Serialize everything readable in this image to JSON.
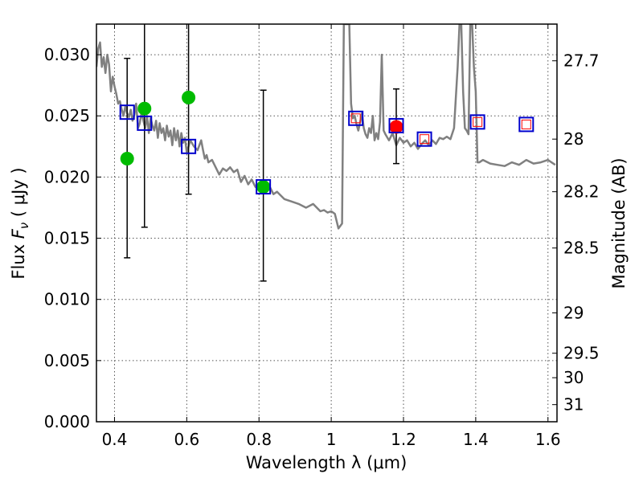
{
  "chart_data": {
    "type": "scatter",
    "xlabel": "Wavelength  λ (μm)",
    "ylabel": "Flux  F_ν  ( μJy )",
    "ylabel_parts": {
      "prefix": "Flux  ",
      "var": "F",
      "sub": "ν",
      "suffix": "  ( μJy )"
    },
    "y2label": "Magnitude (AB)",
    "xlim": [
      0.35,
      1.625
    ],
    "ylim": [
      0.0,
      0.0325
    ],
    "grid": true,
    "x_ticks": [
      0.4,
      0.6,
      0.8,
      1.0,
      1.2,
      1.4,
      1.6
    ],
    "x_tick_labels": [
      "0.4",
      "0.6",
      "0.8",
      "1",
      "1.2",
      "1.4",
      "1.6"
    ],
    "y_ticks": [
      0.0,
      0.005,
      0.01,
      0.015,
      0.02,
      0.025,
      0.03
    ],
    "y_tick_labels": [
      "0.000",
      "0.005",
      "0.010",
      "0.015",
      "0.020",
      "0.025",
      "0.030"
    ],
    "right_axis_ticks": [
      {
        "flux": 0.0295,
        "label": "27.7"
      },
      {
        "flux": 0.0231,
        "label": "28"
      },
      {
        "flux": 0.0188,
        "label": "28.2"
      },
      {
        "flux": 0.0142,
        "label": "28.5"
      },
      {
        "flux": 0.0089,
        "label": "29"
      },
      {
        "flux": 0.0056,
        "label": "29.5"
      },
      {
        "flux": 0.0036,
        "label": "30"
      },
      {
        "flux": 0.0014,
        "label": "31"
      }
    ],
    "colors": {
      "spectrum": "#808080",
      "green": "#00bb00",
      "red": "#ff0000",
      "blue_box": "#0000cc",
      "error_bar": "#000000"
    },
    "series": [
      {
        "name": "model spectrum",
        "type": "line",
        "x": [
          0.35,
          0.355,
          0.36,
          0.365,
          0.37,
          0.375,
          0.38,
          0.385,
          0.39,
          0.395,
          0.4,
          0.405,
          0.41,
          0.415,
          0.42,
          0.425,
          0.43,
          0.435,
          0.44,
          0.445,
          0.45,
          0.455,
          0.46,
          0.465,
          0.47,
          0.475,
          0.48,
          0.485,
          0.49,
          0.495,
          0.5,
          0.505,
          0.51,
          0.515,
          0.52,
          0.525,
          0.53,
          0.535,
          0.54,
          0.545,
          0.55,
          0.555,
          0.56,
          0.565,
          0.57,
          0.575,
          0.58,
          0.585,
          0.59,
          0.595,
          0.6,
          0.61,
          0.62,
          0.63,
          0.64,
          0.645,
          0.65,
          0.655,
          0.66,
          0.67,
          0.68,
          0.69,
          0.7,
          0.71,
          0.72,
          0.73,
          0.74,
          0.75,
          0.76,
          0.77,
          0.78,
          0.79,
          0.8,
          0.81,
          0.82,
          0.83,
          0.84,
          0.85,
          0.87,
          0.89,
          0.91,
          0.93,
          0.95,
          0.97,
          0.98,
          0.99,
          1.0,
          1.01,
          1.02,
          1.03,
          1.035,
          1.04,
          1.045,
          1.05,
          1.055,
          1.06,
          1.065,
          1.07,
          1.075,
          1.08,
          1.085,
          1.09,
          1.095,
          1.1,
          1.105,
          1.11,
          1.115,
          1.12,
          1.125,
          1.13,
          1.135,
          1.14,
          1.145,
          1.15,
          1.16,
          1.17,
          1.18,
          1.19,
          1.2,
          1.21,
          1.22,
          1.23,
          1.24,
          1.25,
          1.26,
          1.27,
          1.28,
          1.29,
          1.3,
          1.31,
          1.32,
          1.33,
          1.34,
          1.35,
          1.355,
          1.36,
          1.365,
          1.37,
          1.375,
          1.38,
          1.385,
          1.39,
          1.395,
          1.4,
          1.405,
          1.41,
          1.42,
          1.44,
          1.46,
          1.48,
          1.5,
          1.52,
          1.54,
          1.56,
          1.58,
          1.6,
          1.62
        ],
        "y": [
          0.029,
          0.0305,
          0.031,
          0.029,
          0.0298,
          0.0285,
          0.03,
          0.0292,
          0.027,
          0.0282,
          0.0274,
          0.0268,
          0.026,
          0.0262,
          0.0255,
          0.025,
          0.0258,
          0.0252,
          0.0249,
          0.0255,
          0.0246,
          0.0251,
          0.026,
          0.024,
          0.0244,
          0.0253,
          0.0246,
          0.024,
          0.025,
          0.0236,
          0.0248,
          0.0242,
          0.0238,
          0.0246,
          0.0232,
          0.0244,
          0.0236,
          0.024,
          0.023,
          0.0242,
          0.0233,
          0.0238,
          0.0226,
          0.024,
          0.023,
          0.0238,
          0.0225,
          0.0236,
          0.0228,
          0.0232,
          0.022,
          0.023,
          0.0225,
          0.0222,
          0.023,
          0.0222,
          0.0215,
          0.0218,
          0.0212,
          0.0214,
          0.0208,
          0.0202,
          0.0207,
          0.0205,
          0.0208,
          0.0204,
          0.0206,
          0.0196,
          0.0201,
          0.0194,
          0.0198,
          0.0192,
          0.019,
          0.0194,
          0.0188,
          0.0192,
          0.0186,
          0.0188,
          0.0182,
          0.018,
          0.0178,
          0.0175,
          0.0178,
          0.0172,
          0.0173,
          0.0171,
          0.0172,
          0.017,
          0.0158,
          0.0162,
          0.0325,
          0.0325,
          0.0325,
          0.0325,
          0.026,
          0.0248,
          0.025,
          0.0243,
          0.0238,
          0.0245,
          0.0252,
          0.024,
          0.0235,
          0.0232,
          0.024,
          0.0236,
          0.025,
          0.023,
          0.0236,
          0.0231,
          0.0245,
          0.03,
          0.0238,
          0.0235,
          0.023,
          0.0236,
          0.0226,
          0.0232,
          0.0228,
          0.023,
          0.0225,
          0.0228,
          0.0223,
          0.0227,
          0.023,
          0.0226,
          0.023,
          0.0227,
          0.0232,
          0.0231,
          0.0233,
          0.0231,
          0.024,
          0.029,
          0.0325,
          0.0325,
          0.027,
          0.024,
          0.0238,
          0.0235,
          0.0325,
          0.0325,
          0.029,
          0.027,
          0.0212,
          0.0212,
          0.0214,
          0.0211,
          0.021,
          0.0209,
          0.0212,
          0.021,
          0.0214,
          0.0211,
          0.0212,
          0.0214,
          0.021
        ]
      },
      {
        "name": "observed (green)",
        "type": "scatter",
        "x": [
          0.435,
          0.483,
          0.605,
          0.812
        ],
        "y": [
          0.0215,
          0.0256,
          0.0265,
          0.0192
        ]
      },
      {
        "name": "observed (red)",
        "type": "scatter",
        "x": [
          1.18
        ],
        "y": [
          0.0241
        ]
      },
      {
        "name": "model photometry (blue boxes)",
        "type": "scatter",
        "x": [
          0.435,
          0.483,
          0.605,
          0.812,
          1.068,
          1.18,
          1.258,
          1.405,
          1.54
        ],
        "y": [
          0.0253,
          0.0244,
          0.0225,
          0.0192,
          0.0248,
          0.0242,
          0.0231,
          0.0245,
          0.0243
        ]
      },
      {
        "name": "model photometry (red boxes)",
        "type": "scatter",
        "x": [
          1.068,
          1.258,
          1.405,
          1.54
        ],
        "y": [
          0.0248,
          0.0231,
          0.0245,
          0.0243
        ]
      },
      {
        "name": "error bars",
        "type": "errorbar",
        "x": [
          0.435,
          0.483,
          0.605,
          0.812,
          1.18
        ],
        "y_low": [
          0.0134,
          0.0159,
          0.0186,
          0.0115,
          0.0211
        ],
        "y_high": [
          0.0297,
          0.033,
          0.033,
          0.0271,
          0.0272
        ]
      }
    ]
  }
}
